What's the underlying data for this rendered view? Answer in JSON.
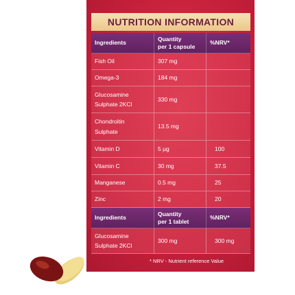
{
  "title": "NUTRITION INFORMATION",
  "table1": {
    "header": [
      [
        "Ingredients"
      ],
      [
        "Quantity",
        "per 1 capsule"
      ],
      [
        "%NRV*"
      ]
    ],
    "rows": [
      {
        "ingredient": [
          "Fish Oil"
        ],
        "quantity": "307 mg"
      },
      {
        "ingredient": [
          "Omega-3"
        ],
        "quantity": "184 mg"
      },
      {
        "ingredient": [
          "Glucosamine",
          "Sulphate 2KCl"
        ],
        "quantity": "330 mg"
      },
      {
        "ingredient": [
          "Chondroitin",
          "Sulphate"
        ],
        "quantity": "13.5 mg"
      },
      {
        "ingredient": [
          "Vitamin D"
        ],
        "quantity": "5 µg",
        "nrv": "100"
      },
      {
        "ingredient": [
          "Vitamin C"
        ],
        "quantity": "30 mg",
        "nrv": "37.5"
      },
      {
        "ingredient": [
          "Manganese"
        ],
        "quantity": "0.5 mg",
        "nrv": "25"
      },
      {
        "ingredient": [
          "Zinc"
        ],
        "quantity": "2 mg",
        "nrv": "20"
      }
    ]
  },
  "table2": {
    "header": [
      [
        "Ingredients"
      ],
      [
        "Quantity",
        "per 1 tablet"
      ],
      [
        "%NRV*"
      ]
    ],
    "rows": [
      {
        "ingredient": [
          "Glucosamine",
          "Sulphate 2KCl"
        ],
        "quantity": "300 mg",
        "nrv": "300 mg"
      }
    ]
  },
  "footnote": "* NRV - Nutrient reference Value"
}
